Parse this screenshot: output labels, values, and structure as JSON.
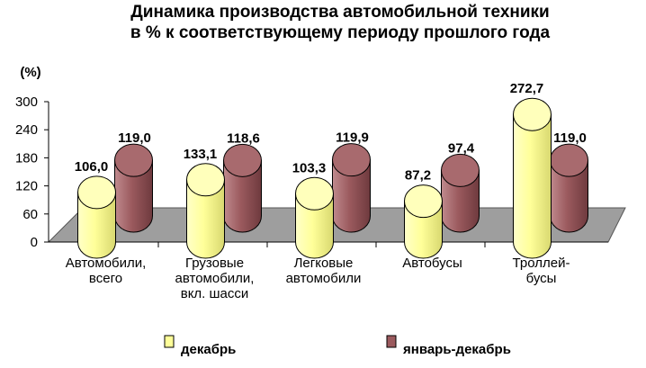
{
  "chart_data": {
    "type": "bar",
    "title_lines": [
      "Динамика производства автомобильной техники",
      "в % к соответствующему периоду прошлого года"
    ],
    "ylabel": "(%)",
    "ylim": [
      0,
      300
    ],
    "yticks": [
      "0",
      "60",
      "120",
      "180",
      "240",
      "300"
    ],
    "categories": [
      [
        "Автомобили,",
        "всего"
      ],
      [
        "Грузовые",
        "автомобили,",
        "вкл. шасси"
      ],
      [
        "Легковые",
        "автомобили"
      ],
      [
        "Автобусы"
      ],
      [
        "Троллей-",
        "бусы"
      ]
    ],
    "series": [
      {
        "name": "декабрь",
        "color": "#ffff99",
        "values": [
          106.0,
          133.1,
          103.3,
          87.2,
          272.7
        ],
        "labels": [
          "106,0",
          "133,1",
          "103,3",
          "87,2",
          "272,7"
        ]
      },
      {
        "name": "январь-декабрь",
        "color": "#9b5a5e",
        "values": [
          119.0,
          118.6,
          119.9,
          97.4,
          119.0
        ],
        "labels": [
          "119,0",
          "118,6",
          "119,9",
          "97,4",
          "119,0"
        ]
      }
    ],
    "legend_position": "bottom",
    "grid": false,
    "style": "3d-cylinder"
  }
}
